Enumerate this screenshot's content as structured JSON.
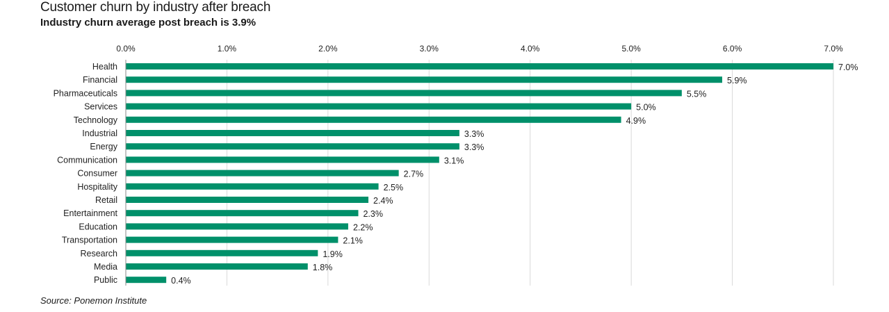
{
  "title": "Customer churn by industry after breach",
  "subtitle": "Industry churn average post breach is 3.9%",
  "source": "Source: Ponemon Institute",
  "colors": {
    "bar": "#00906a",
    "grid": "#d9d9d9",
    "axis": "#888888"
  },
  "chart_data": {
    "type": "bar",
    "orientation": "horizontal",
    "title": "Customer churn by industry after breach",
    "subtitle": "Industry churn average post breach is 3.9%",
    "xlim": [
      0,
      7
    ],
    "x_ticks": [
      "0.0%",
      "1.0%",
      "2.0%",
      "3.0%",
      "4.0%",
      "5.0%",
      "6.0%",
      "7.0%"
    ],
    "x_axis_position": "top",
    "grid": true,
    "categories": [
      "Health",
      "Financial",
      "Pharmaceuticals",
      "Services",
      "Technology",
      "Industrial",
      "Energy",
      "Communication",
      "Consumer",
      "Hospitality",
      "Retail",
      "Entertainment",
      "Education",
      "Transportation",
      "Research",
      "Media",
      "Public"
    ],
    "values": [
      7.0,
      5.9,
      5.5,
      5.0,
      4.9,
      3.3,
      3.3,
      3.1,
      2.7,
      2.5,
      2.4,
      2.3,
      2.2,
      2.1,
      1.9,
      1.8,
      0.4
    ],
    "value_labels": [
      "7.0%",
      "5.9%",
      "5.5%",
      "5.0%",
      "4.9%",
      "3.3%",
      "3.3%",
      "3.1%",
      "2.7%",
      "2.5%",
      "2.4%",
      "2.3%",
      "2.2%",
      "2.1%",
      "1.9%",
      "1.8%",
      "0.4%"
    ]
  }
}
